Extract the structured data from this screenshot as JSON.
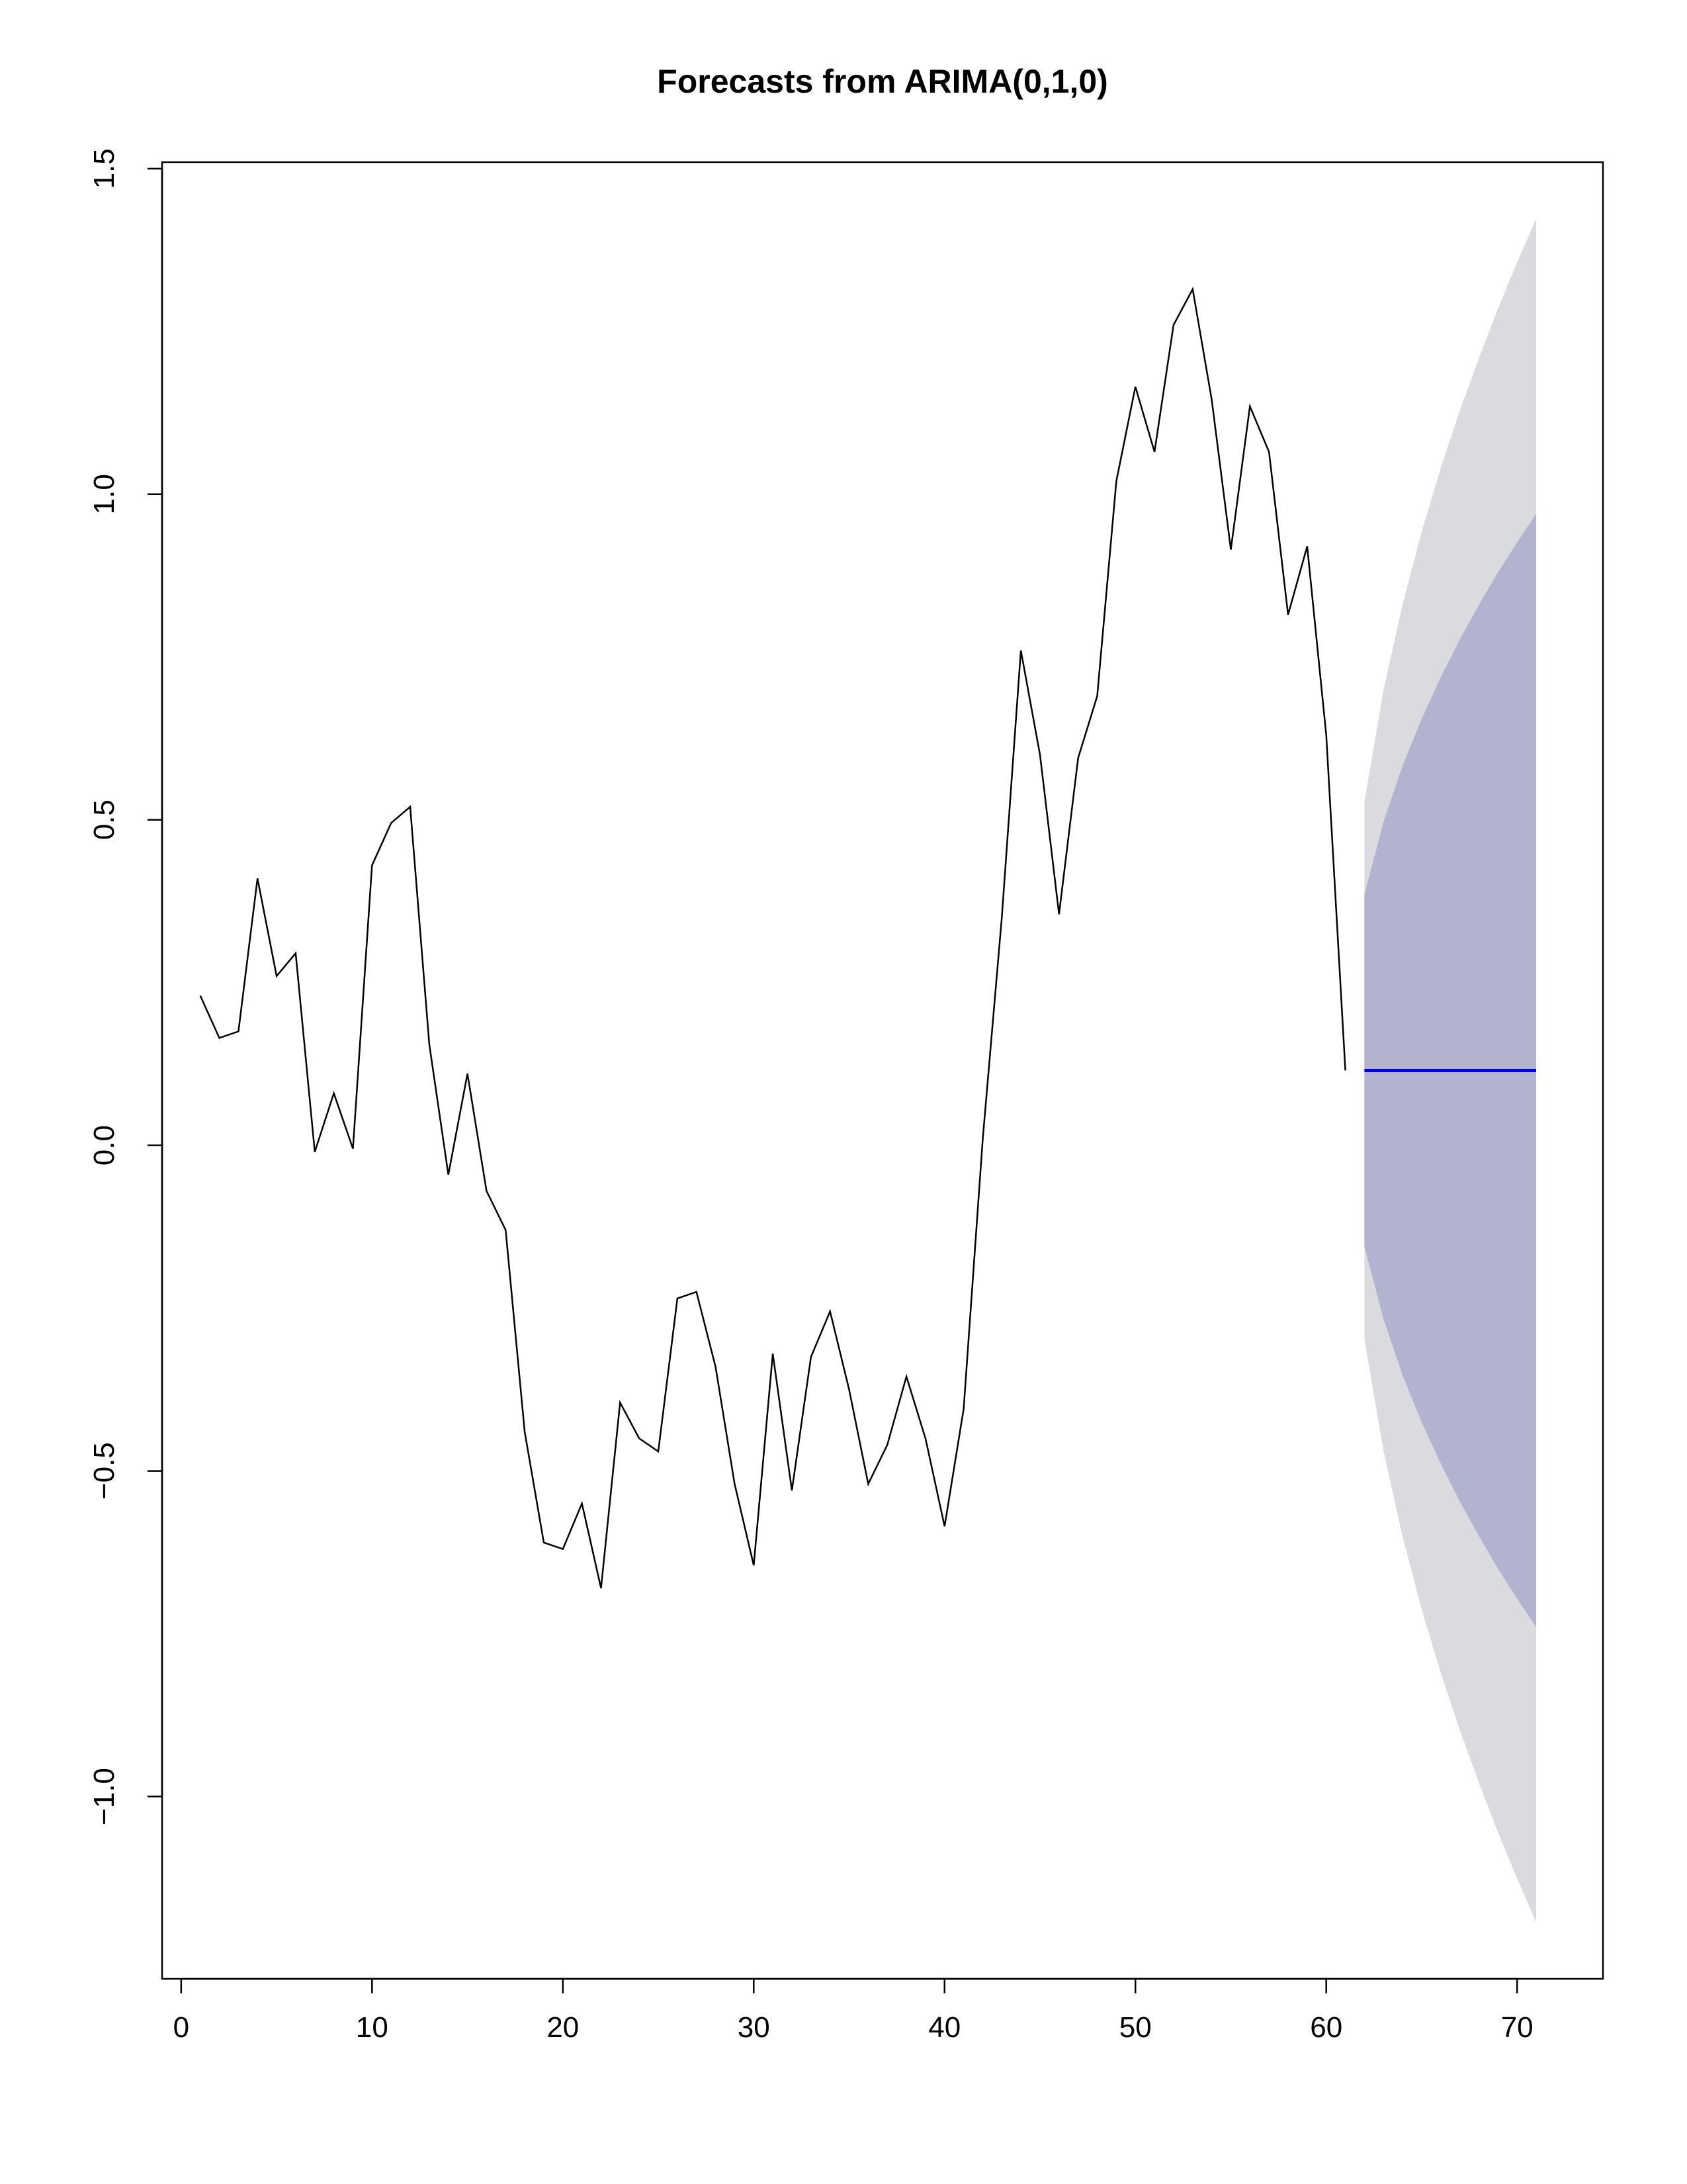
{
  "chart_data": {
    "type": "line",
    "title": "Forecasts from ARIMA(0,1,0)",
    "xlabel": "",
    "ylabel": "",
    "xlim": [
      -1,
      74.5
    ],
    "ylim": [
      -1.28,
      1.51
    ],
    "x_ticks": [
      0,
      10,
      20,
      30,
      40,
      50,
      60,
      70
    ],
    "y_ticks": [
      -1.0,
      -0.5,
      0.0,
      0.5,
      1.0,
      1.5
    ],
    "y_tick_labels": [
      "−1.0",
      "−0.5",
      "0.0",
      "0.5",
      "1.0",
      "1.5"
    ],
    "grid": false,
    "legend": "none",
    "observed": {
      "x": [
        1,
        2,
        3,
        4,
        5,
        6,
        7,
        8,
        9,
        10,
        11,
        12,
        13,
        14,
        15,
        16,
        17,
        18,
        19,
        20,
        21,
        22,
        23,
        24,
        25,
        26,
        27,
        28,
        29,
        30,
        31,
        32,
        33,
        34,
        35,
        36,
        37,
        38,
        39,
        40,
        41,
        42,
        43,
        44,
        45,
        46,
        47,
        48,
        49,
        50,
        51,
        52,
        53,
        54,
        55,
        56,
        57,
        58,
        59,
        60,
        61
      ],
      "y": [
        0.23,
        0.165,
        0.175,
        0.41,
        0.26,
        0.295,
        -0.01,
        0.08,
        -0.005,
        0.43,
        0.495,
        0.52,
        0.155,
        -0.045,
        0.11,
        -0.07,
        -0.13,
        -0.44,
        -0.61,
        -0.62,
        -0.55,
        -0.68,
        -0.395,
        -0.45,
        -0.47,
        -0.235,
        -0.225,
        -0.34,
        -0.52,
        -0.645,
        -0.32,
        -0.53,
        -0.325,
        -0.255,
        -0.375,
        -0.52,
        -0.46,
        -0.355,
        -0.45,
        -0.585,
        -0.405,
        0.01,
        0.35,
        0.76,
        0.6,
        0.355,
        0.595,
        0.69,
        1.02,
        1.165,
        1.065,
        1.26,
        1.315,
        1.145,
        0.915,
        1.135,
        1.065,
        0.815,
        0.92,
        0.63,
        0.115
      ],
      "color": "#000000"
    },
    "forecast": {
      "x": [
        62,
        63,
        64,
        65,
        66,
        67,
        68,
        69,
        70,
        71
      ],
      "mean": [
        0.115,
        0.115,
        0.115,
        0.115,
        0.115,
        0.115,
        0.115,
        0.115,
        0.115,
        0.115
      ],
      "lower_80": [
        -0.155,
        -0.267,
        -0.353,
        -0.425,
        -0.489,
        -0.547,
        -0.6,
        -0.65,
        -0.696,
        -0.74
      ],
      "upper_80": [
        0.385,
        0.497,
        0.583,
        0.655,
        0.719,
        0.777,
        0.83,
        0.88,
        0.926,
        0.97
      ],
      "lower_95": [
        -0.298,
        -0.469,
        -0.601,
        -0.712,
        -0.81,
        -0.898,
        -0.979,
        -1.055,
        -1.126,
        -1.193
      ],
      "upper_95": [
        0.528,
        0.699,
        0.831,
        0.942,
        1.04,
        1.128,
        1.209,
        1.285,
        1.356,
        1.423
      ],
      "mean_color": "#0000ee",
      "band_80_color": "#b2b4cf",
      "band_95_color": "#dadadf"
    }
  }
}
